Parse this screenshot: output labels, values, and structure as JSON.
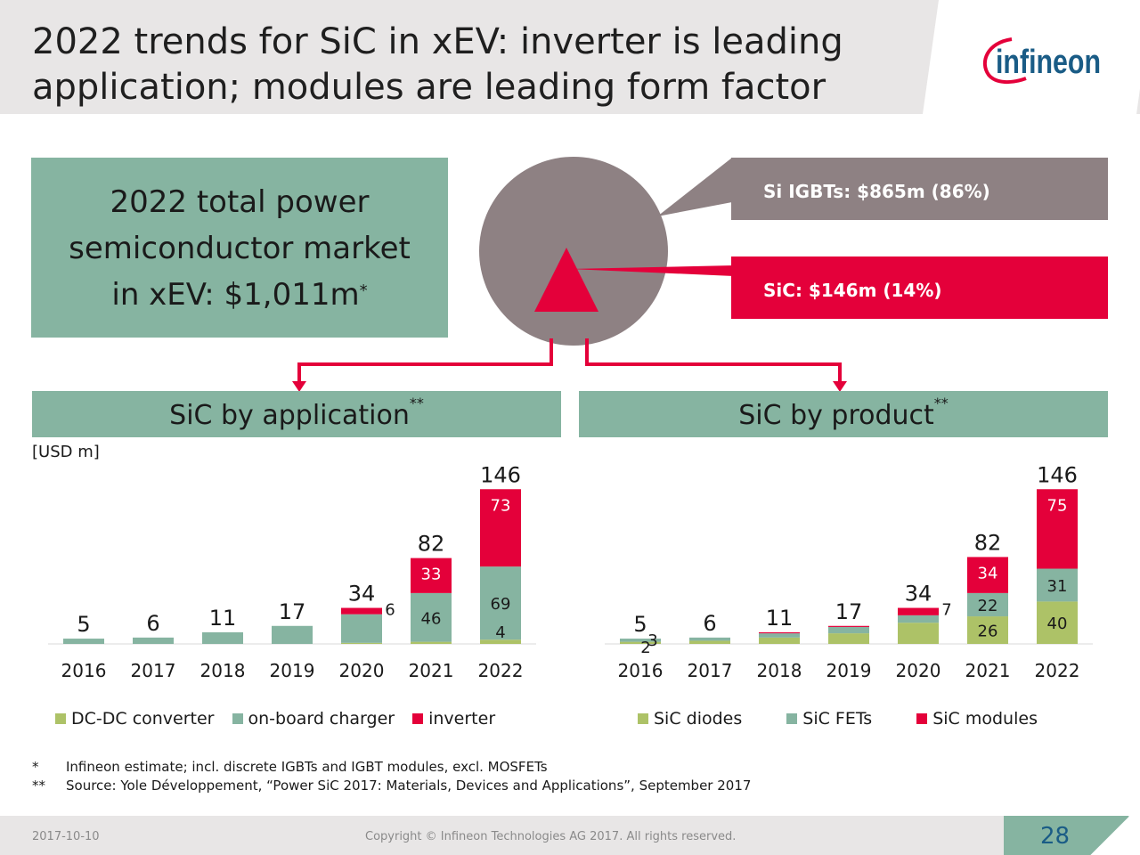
{
  "title_line1": "2022 trends for SiC in xEV: inverter is leading",
  "title_line2": "application; modules are leading form factor",
  "logo_text": "infineon",
  "market_box": {
    "line1": "2022 total power",
    "line2": "semiconductor market",
    "line3": "in xEV: $1,011m",
    "mark": "*"
  },
  "pie": {
    "segments": [
      {
        "label": "Si IGBTs: $865m (86%)",
        "value": 86,
        "color": "#8e8183"
      },
      {
        "label": "SiC: $146m (14%)",
        "value": 14,
        "color": "#e4003a"
      }
    ]
  },
  "section_app": {
    "label": "SiC by application",
    "mark": "**"
  },
  "section_prod": {
    "label": "SiC by product",
    "mark": "**"
  },
  "unit": "[USD m]",
  "colors": {
    "green_box": "#86b4a1",
    "red": "#e4003a",
    "olive": "#adc267",
    "teal": "#86b4a1",
    "grey": "#8e8183"
  },
  "chart_data": [
    {
      "type": "bar",
      "stacked": true,
      "categories": [
        "2016",
        "2017",
        "2018",
        "2019",
        "2020",
        "2021",
        "2022"
      ],
      "series": [
        {
          "name": "DC-DC converter",
          "color": "#adc267",
          "values": [
            0,
            0,
            0,
            0,
            1,
            2,
            4
          ]
        },
        {
          "name": "on-board charger",
          "color": "#86b4a1",
          "values": [
            5,
            6,
            11,
            17,
            27,
            46,
            69
          ]
        },
        {
          "name": "inverter",
          "color": "#e4003a",
          "values": [
            0,
            0,
            0,
            0,
            6,
            33,
            73
          ]
        }
      ],
      "totals": [
        5,
        6,
        11,
        17,
        34,
        82,
        146
      ],
      "segment_labels": [
        {
          "category": "2020",
          "series": "inverter",
          "text": "6"
        },
        {
          "category": "2021",
          "series": "on-board charger",
          "text": "46"
        },
        {
          "category": "2021",
          "series": "inverter",
          "text": "33"
        },
        {
          "category": "2022",
          "series": "DC-DC converter",
          "text": "4"
        },
        {
          "category": "2022",
          "series": "on-board charger",
          "text": "69"
        },
        {
          "category": "2022",
          "series": "inverter",
          "text": "73"
        }
      ],
      "ylim": [
        0,
        150
      ]
    },
    {
      "type": "bar",
      "stacked": true,
      "categories": [
        "2016",
        "2017",
        "2018",
        "2019",
        "2020",
        "2021",
        "2022"
      ],
      "series": [
        {
          "name": "SiC diodes",
          "color": "#adc267",
          "values": [
            2,
            3,
            6,
            10,
            20,
            26,
            40
          ]
        },
        {
          "name": "SiC FETs",
          "color": "#86b4a1",
          "values": [
            3,
            3,
            4,
            6,
            7,
            22,
            31
          ]
        },
        {
          "name": "SiC modules",
          "color": "#e4003a",
          "values": [
            0,
            0,
            1,
            1,
            7,
            34,
            75
          ]
        }
      ],
      "totals": [
        5,
        6,
        11,
        17,
        34,
        82,
        146
      ],
      "segment_labels": [
        {
          "category": "2016",
          "series": "SiC diodes",
          "text": "2"
        },
        {
          "category": "2016",
          "series": "SiC FETs",
          "text": "3"
        },
        {
          "category": "2020",
          "series": "SiC modules",
          "text": "7"
        },
        {
          "category": "2021",
          "series": "SiC diodes",
          "text": "26"
        },
        {
          "category": "2021",
          "series": "SiC FETs",
          "text": "22"
        },
        {
          "category": "2021",
          "series": "SiC modules",
          "text": "34"
        },
        {
          "category": "2022",
          "series": "SiC diodes",
          "text": "40"
        },
        {
          "category": "2022",
          "series": "SiC FETs",
          "text": "31"
        },
        {
          "category": "2022",
          "series": "SiC modules",
          "text": "75"
        }
      ],
      "ylim": [
        0,
        150
      ]
    }
  ],
  "notes": [
    {
      "mark": "*",
      "text": "Infineon estimate; incl. discrete IGBTs and IGBT modules, excl. MOSFETs"
    },
    {
      "mark": "**",
      "text": "Source: Yole Développement, “Power SiC 2017: Materials, Devices and Applications”, September 2017"
    }
  ],
  "footer": {
    "date": "2017-10-10",
    "copyright": "Copyright © Infineon Technologies AG 2017. All rights reserved.",
    "page": "28"
  }
}
